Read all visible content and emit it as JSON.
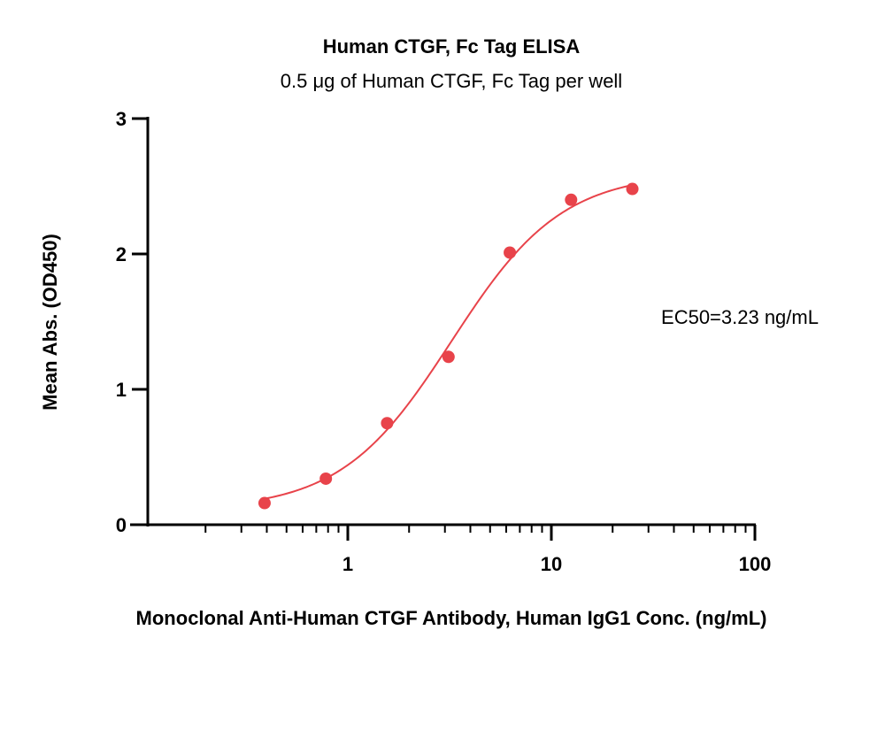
{
  "chart_data": {
    "type": "scatter",
    "title": "Human CTGF, Fc Tag ELISA",
    "subtitle": "0.5 μg of Human CTGF, Fc Tag per well",
    "xlabel": "Monoclonal Anti-Human CTGF Antibody, Human IgG1 Conc. (ng/mL)",
    "ylabel": "Mean Abs. (OD450)",
    "xscale": "log",
    "xlim": [
      0.1,
      100
    ],
    "ylim": [
      0,
      3
    ],
    "x_ticks": [
      {
        "value": 1,
        "label": "1"
      },
      {
        "value": 10,
        "label": "10"
      },
      {
        "value": 100,
        "label": "100"
      }
    ],
    "y_ticks": [
      {
        "value": 0,
        "label": "0"
      },
      {
        "value": 1,
        "label": "1"
      },
      {
        "value": 2,
        "label": "2"
      },
      {
        "value": 3,
        "label": "3"
      }
    ],
    "grid": false,
    "series": [
      {
        "points": [
          {
            "x": 0.39,
            "y": 0.16
          },
          {
            "x": 0.78,
            "y": 0.34
          },
          {
            "x": 1.56,
            "y": 0.75
          },
          {
            "x": 3.125,
            "y": 1.24
          },
          {
            "x": 6.25,
            "y": 2.01
          },
          {
            "x": 12.5,
            "y": 2.4
          },
          {
            "x": 25,
            "y": 2.48
          }
        ],
        "fit": "4PL sigmoidal",
        "color": "#e8434a"
      }
    ],
    "annotations": [
      {
        "text": "EC50=3.23 ng/mL"
      }
    ]
  }
}
